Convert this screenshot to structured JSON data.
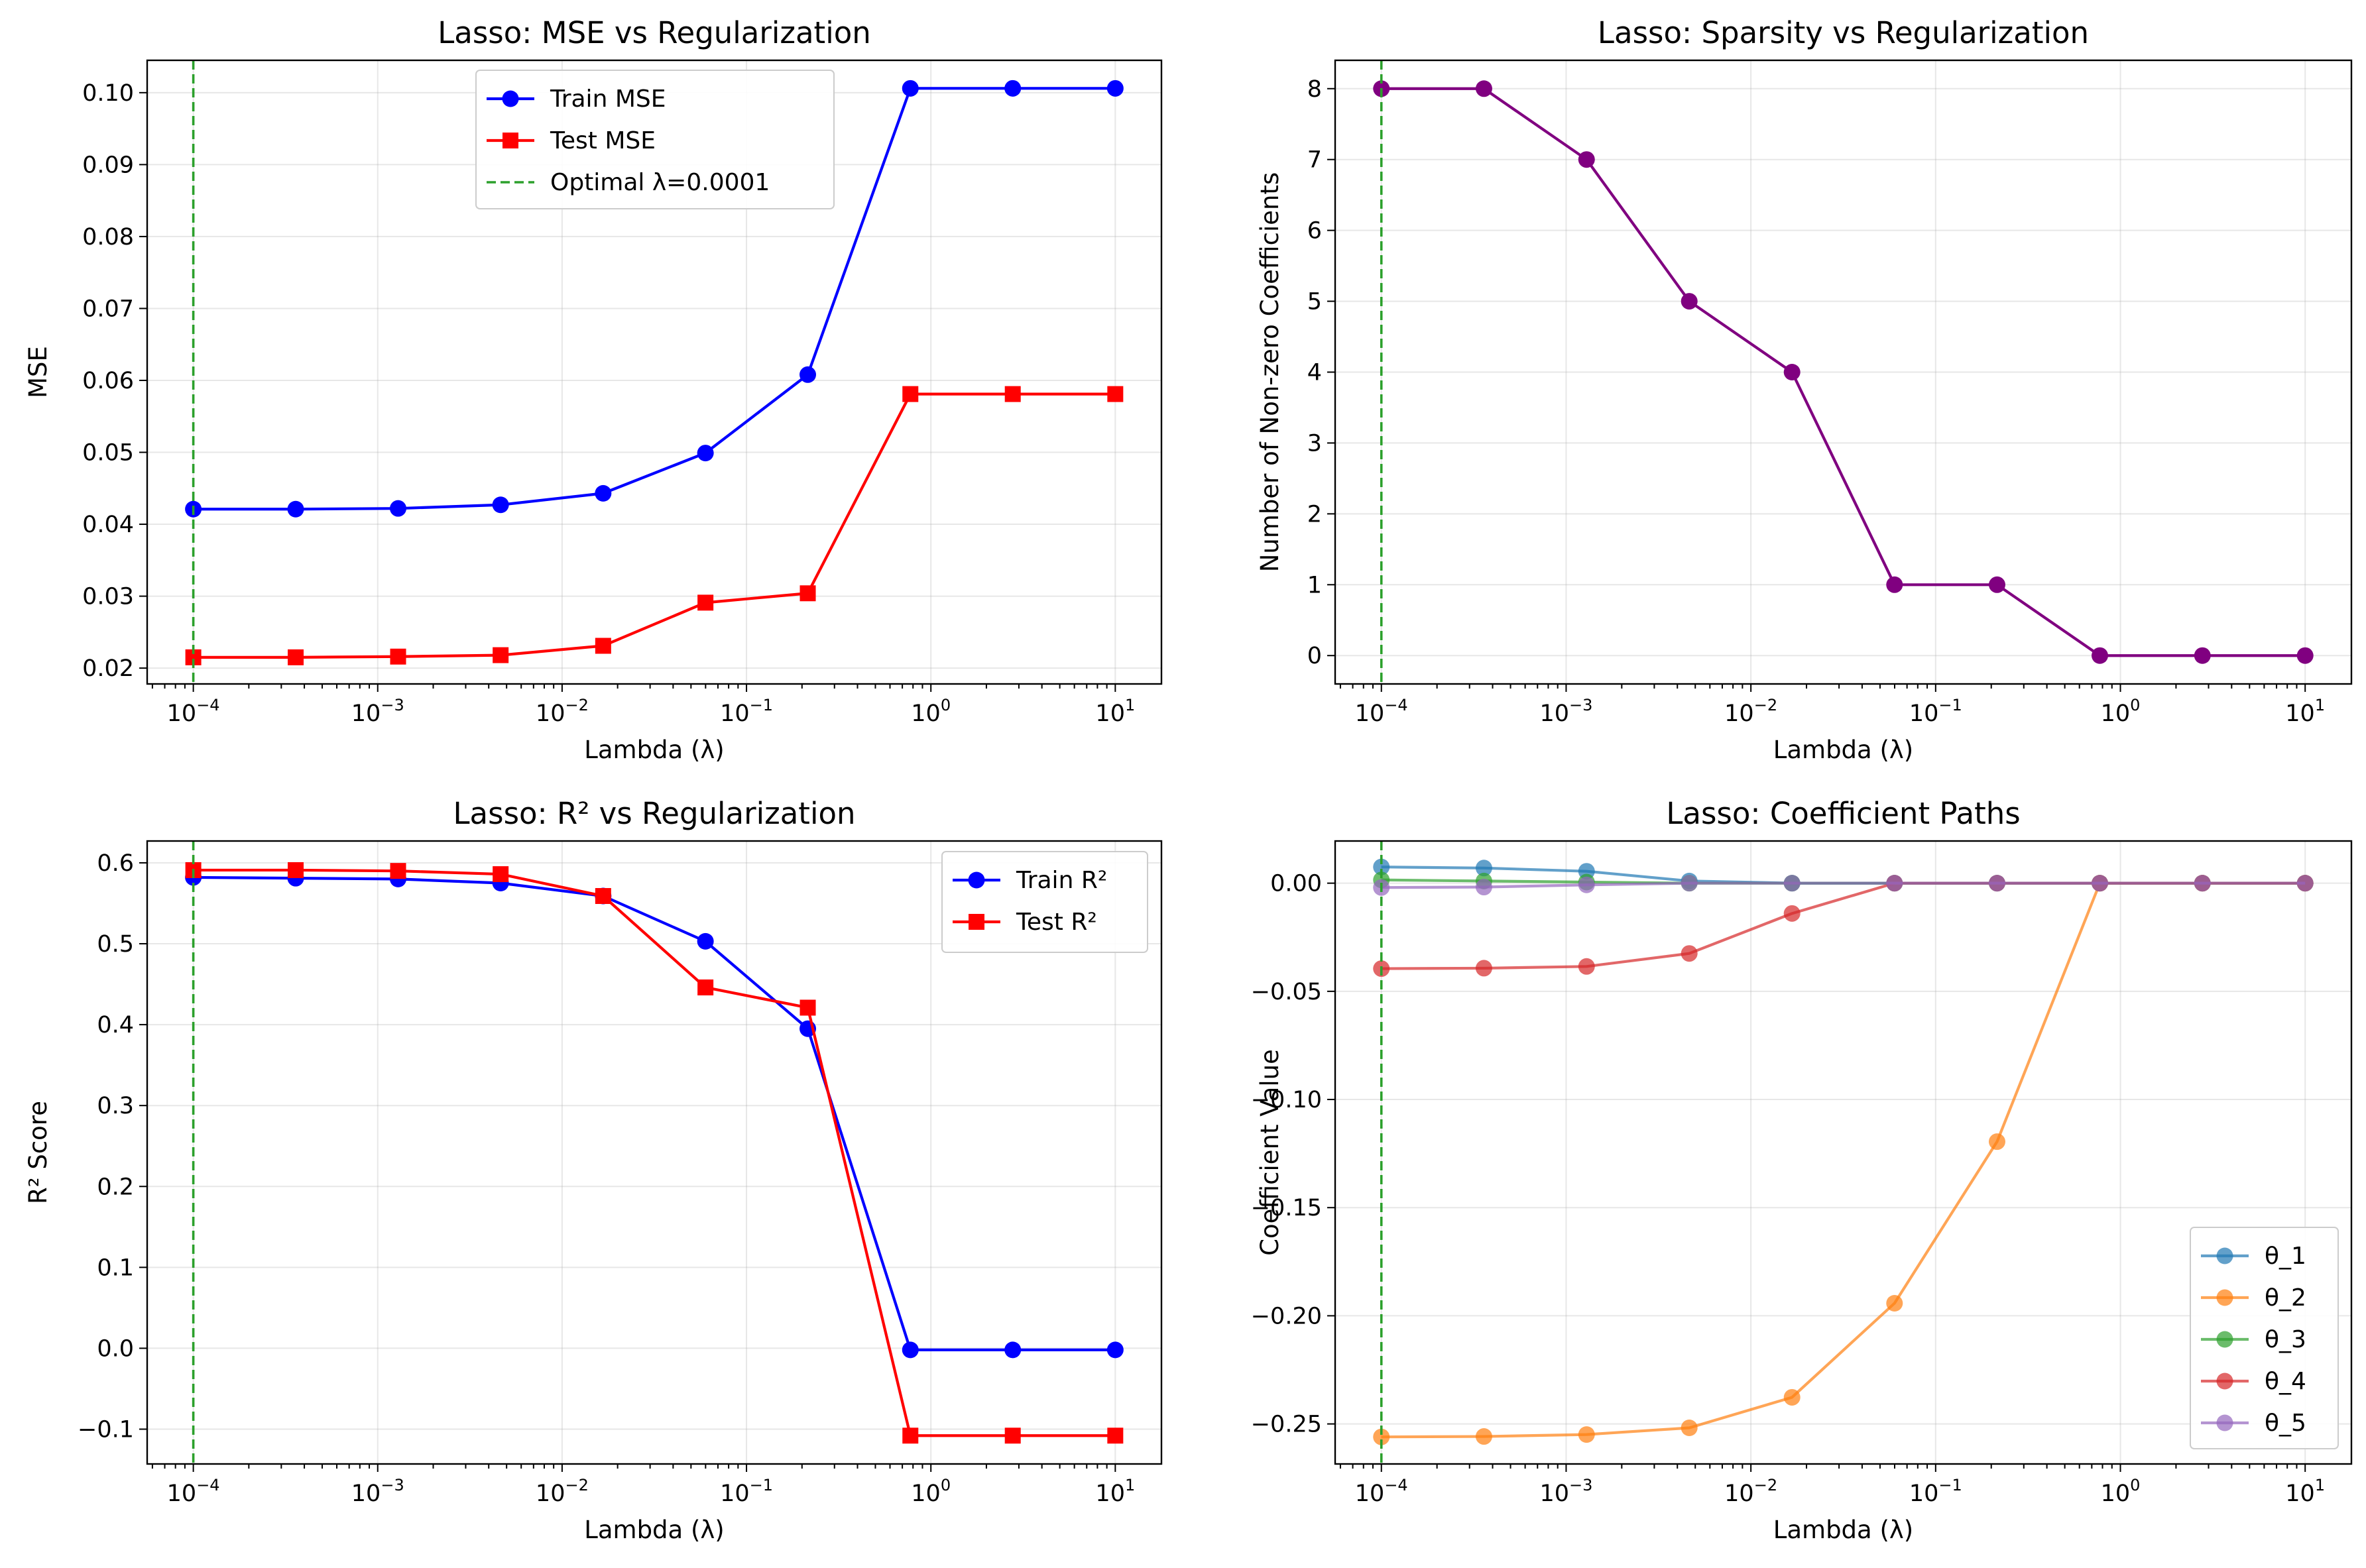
{
  "chart_data": [
    {
      "type": "line",
      "title": "Lasso: MSE vs Regularization",
      "xlabel": "Lambda (λ)",
      "ylabel": "MSE",
      "xscale": "log",
      "xlim": [
        5.62e-05,
        17.8
      ],
      "ylim": [
        0.0178,
        0.1045
      ],
      "yticks": [
        0.02,
        0.03,
        0.04,
        0.05,
        0.06,
        0.07,
        0.08,
        0.09,
        0.1
      ],
      "ytick_labels": [
        "0.02",
        "0.03",
        "0.04",
        "0.05",
        "0.06",
        "0.07",
        "0.08",
        "0.09",
        "0.10"
      ],
      "grid": true,
      "legend_position": "upper-center",
      "x": [
        0.0001,
        0.000359,
        0.00129,
        0.00464,
        0.0167,
        0.0599,
        0.215,
        0.774,
        2.78,
        10
      ],
      "series": [
        {
          "name": "Train MSE",
          "color": "#0000ff",
          "marker": "circle",
          "values": [
            0.0421,
            0.0421,
            0.0422,
            0.0427,
            0.0443,
            0.0499,
            0.0608,
            0.1006,
            0.1006,
            0.1006
          ]
        },
        {
          "name": "Test MSE",
          "color": "#ff0000",
          "marker": "square",
          "values": [
            0.0215,
            0.0215,
            0.0216,
            0.0218,
            0.0231,
            0.0291,
            0.0304,
            0.0581,
            0.0581,
            0.0581
          ]
        }
      ],
      "vline": {
        "name": "Optimal λ=0.0001",
        "x": 0.0001,
        "color": "#2ca02c"
      }
    },
    {
      "type": "line",
      "title": "Lasso: Sparsity vs Regularization",
      "xlabel": "Lambda (λ)",
      "ylabel": "Number of Non-zero Coefficients",
      "xscale": "log",
      "xlim": [
        5.62e-05,
        17.8
      ],
      "ylim": [
        -0.4,
        8.4
      ],
      "yticks": [
        0,
        1,
        2,
        3,
        4,
        5,
        6,
        7,
        8
      ],
      "ytick_labels": [
        "0",
        "1",
        "2",
        "3",
        "4",
        "5",
        "6",
        "7",
        "8"
      ],
      "grid": true,
      "legend_position": "",
      "x": [
        0.0001,
        0.000359,
        0.00129,
        0.00464,
        0.0167,
        0.0599,
        0.215,
        0.774,
        2.78,
        10
      ],
      "series": [
        {
          "name": "",
          "color": "#800080",
          "marker": "circle",
          "values": [
            8,
            8,
            7,
            5,
            4,
            1,
            1,
            0,
            0,
            0
          ]
        }
      ],
      "vline": {
        "name": "",
        "x": 0.0001,
        "color": "#2ca02c"
      }
    },
    {
      "type": "line",
      "title": "Lasso: R² vs Regularization",
      "xlabel": "Lambda (λ)",
      "ylabel": "R² Score",
      "xscale": "log",
      "xlim": [
        5.62e-05,
        17.8
      ],
      "ylim": [
        -0.143,
        0.627
      ],
      "yticks": [
        -0.1,
        0.0,
        0.1,
        0.2,
        0.3,
        0.4,
        0.5,
        0.6
      ],
      "ytick_labels": [
        "−0.1",
        "0.0",
        "0.1",
        "0.2",
        "0.3",
        "0.4",
        "0.5",
        "0.6"
      ],
      "grid": true,
      "legend_position": "upper-right",
      "x": [
        0.0001,
        0.000359,
        0.00129,
        0.00464,
        0.0167,
        0.0599,
        0.215,
        0.774,
        2.78,
        10
      ],
      "series": [
        {
          "name": "Train R²",
          "color": "#0000ff",
          "marker": "circle",
          "values": [
            0.582,
            0.581,
            0.58,
            0.575,
            0.559,
            0.503,
            0.395,
            -0.002,
            -0.002,
            -0.002
          ]
        },
        {
          "name": "Test R²",
          "color": "#ff0000",
          "marker": "square",
          "values": [
            0.591,
            0.591,
            0.59,
            0.586,
            0.559,
            0.446,
            0.421,
            -0.108,
            -0.108,
            -0.108
          ]
        }
      ],
      "vline": {
        "name": "",
        "x": 0.0001,
        "color": "#2ca02c"
      }
    },
    {
      "type": "line",
      "title": "Lasso: Coefficient Paths",
      "xlabel": "Lambda (λ)",
      "ylabel": "Coefficient Value",
      "xscale": "log",
      "xlim": [
        5.62e-05,
        17.8
      ],
      "ylim": [
        -0.2685,
        0.0195
      ],
      "yticks": [
        -0.25,
        -0.2,
        -0.15,
        -0.1,
        -0.05,
        0.0
      ],
      "ytick_labels": [
        "−0.25",
        "−0.20",
        "−0.15",
        "−0.10",
        "−0.05",
        "0.00"
      ],
      "grid": true,
      "legend_position": "lower-right",
      "x": [
        0.0001,
        0.000359,
        0.00129,
        0.00464,
        0.0167,
        0.0599,
        0.215,
        0.774,
        2.78,
        10
      ],
      "series": [
        {
          "name": "θ_1",
          "color": "#1f77b4",
          "marker": "circle",
          "values": [
            0.0075,
            0.007,
            0.0055,
            0.001,
            0.0,
            0.0,
            0.0,
            0.0,
            0.0,
            0.0
          ]
        },
        {
          "name": "θ_2",
          "color": "#ff7f0e",
          "marker": "circle",
          "values": [
            -0.256,
            -0.2558,
            -0.2549,
            -0.2518,
            -0.2377,
            -0.1942,
            -0.1195,
            0.0,
            0.0,
            0.0
          ]
        },
        {
          "name": "θ_3",
          "color": "#2ca02c",
          "marker": "circle",
          "values": [
            0.0015,
            0.001,
            0.0005,
            0.0,
            0.0,
            0.0,
            0.0,
            0.0,
            0.0,
            0.0
          ]
        },
        {
          "name": "θ_4",
          "color": "#d62728",
          "marker": "circle",
          "values": [
            -0.0395,
            -0.0393,
            -0.0385,
            -0.0325,
            -0.014,
            0.0,
            0.0,
            0.0,
            0.0,
            0.0
          ]
        },
        {
          "name": "θ_5",
          "color": "#9467bd",
          "marker": "circle",
          "values": [
            -0.002,
            -0.0018,
            -0.0008,
            0.0,
            0.0,
            0.0,
            0.0,
            0.0,
            0.0,
            0.0
          ]
        }
      ],
      "vline": {
        "name": "",
        "x": 0.0001,
        "color": "#2ca02c"
      }
    }
  ]
}
